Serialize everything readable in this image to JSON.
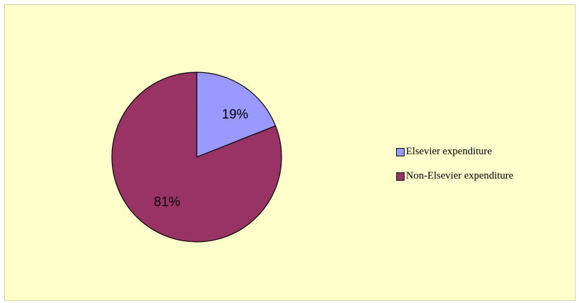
{
  "chart_data": {
    "type": "pie",
    "title": "",
    "slices": [
      {
        "label": "Elsevier expenditure",
        "value": 19,
        "display": "19%",
        "color": "#9999ff"
      },
      {
        "label": "Non-Elsevier expenditure",
        "value": 81,
        "display": "81%",
        "color": "#993366"
      }
    ],
    "legend_position": "right",
    "background_color": "#ffffcc",
    "slice_border_color": "#000000"
  }
}
